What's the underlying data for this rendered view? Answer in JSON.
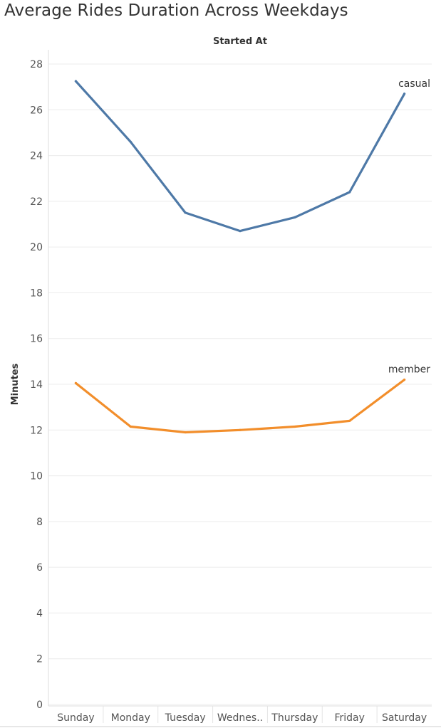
{
  "chart_data": {
    "type": "line",
    "title": "Average Rides Duration Across Weekdays",
    "column_header": "Started At",
    "ylabel": "Minutes",
    "categories": [
      "Sunday",
      "Monday",
      "Tuesday",
      "Wednes..",
      "Thursday",
      "Friday",
      "Saturday"
    ],
    "ylim": [
      0,
      28
    ],
    "yticks": [
      0,
      2,
      4,
      6,
      8,
      10,
      12,
      14,
      16,
      18,
      20,
      22,
      24,
      26,
      28
    ],
    "grid": "horizontal",
    "series": [
      {
        "name": "casual",
        "color": "#4e79a7",
        "values": [
          27.25,
          24.6,
          21.5,
          20.7,
          21.3,
          22.4,
          26.7
        ]
      },
      {
        "name": "member",
        "color": "#f28e2b",
        "values": [
          14.05,
          12.15,
          11.9,
          12.0,
          12.15,
          12.4,
          14.2
        ]
      }
    ]
  }
}
